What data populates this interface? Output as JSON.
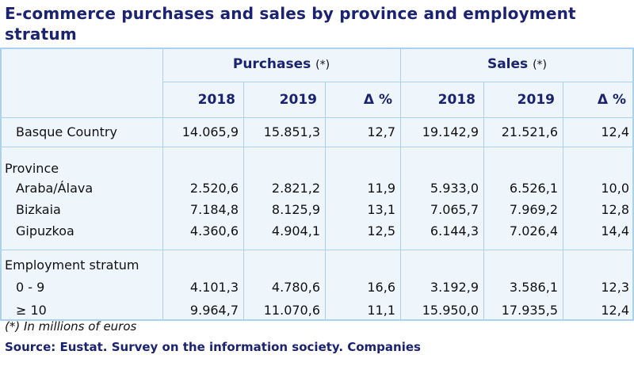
{
  "title": "E-commerce purchases and sales by province and employment stratum",
  "table": {
    "groups": [
      {
        "label": "Purchases",
        "note": "(*)",
        "columns": [
          "2018",
          "2019",
          "Δ %"
        ]
      },
      {
        "label": "Sales",
        "note": "(*)",
        "columns": [
          "2018",
          "2019",
          "Δ %"
        ]
      }
    ],
    "sections": [
      {
        "rows": [
          {
            "label": "Basque Country",
            "values": [
              "14.065,9",
              "15.851,3",
              "12,7",
              "19.142,9",
              "21.521,6",
              "12,4"
            ]
          }
        ]
      },
      {
        "heading": "Province",
        "rows": [
          {
            "label": "Araba/Álava",
            "values": [
              "2.520,6",
              "2.821,2",
              "11,9",
              "5.933,0",
              "6.526,1",
              "10,0"
            ]
          },
          {
            "label": "Bizkaia",
            "values": [
              "7.184,8",
              "8.125,9",
              "13,1",
              "7.065,7",
              "7.969,2",
              "12,8"
            ]
          },
          {
            "label": "Gipuzkoa",
            "values": [
              "4.360,6",
              "4.904,1",
              "12,5",
              "6.144,3",
              "7.026,4",
              "14,4"
            ]
          }
        ]
      },
      {
        "heading": "Employment stratum",
        "rows": [
          {
            "label": "0 - 9",
            "values": [
              "4.101,3",
              "4.780,6",
              "16,6",
              "3.192,9",
              "3.586,1",
              "12,3"
            ]
          },
          {
            "label": "≥ 10",
            "values": [
              "9.964,7",
              "11.070,6",
              "11,1",
              "15.950,0",
              "17.935,5",
              "12,4"
            ]
          }
        ]
      }
    ]
  },
  "footnote": "(*) In millions of euros",
  "source": "Source: Eustat. Survey on the information society. Companies"
}
